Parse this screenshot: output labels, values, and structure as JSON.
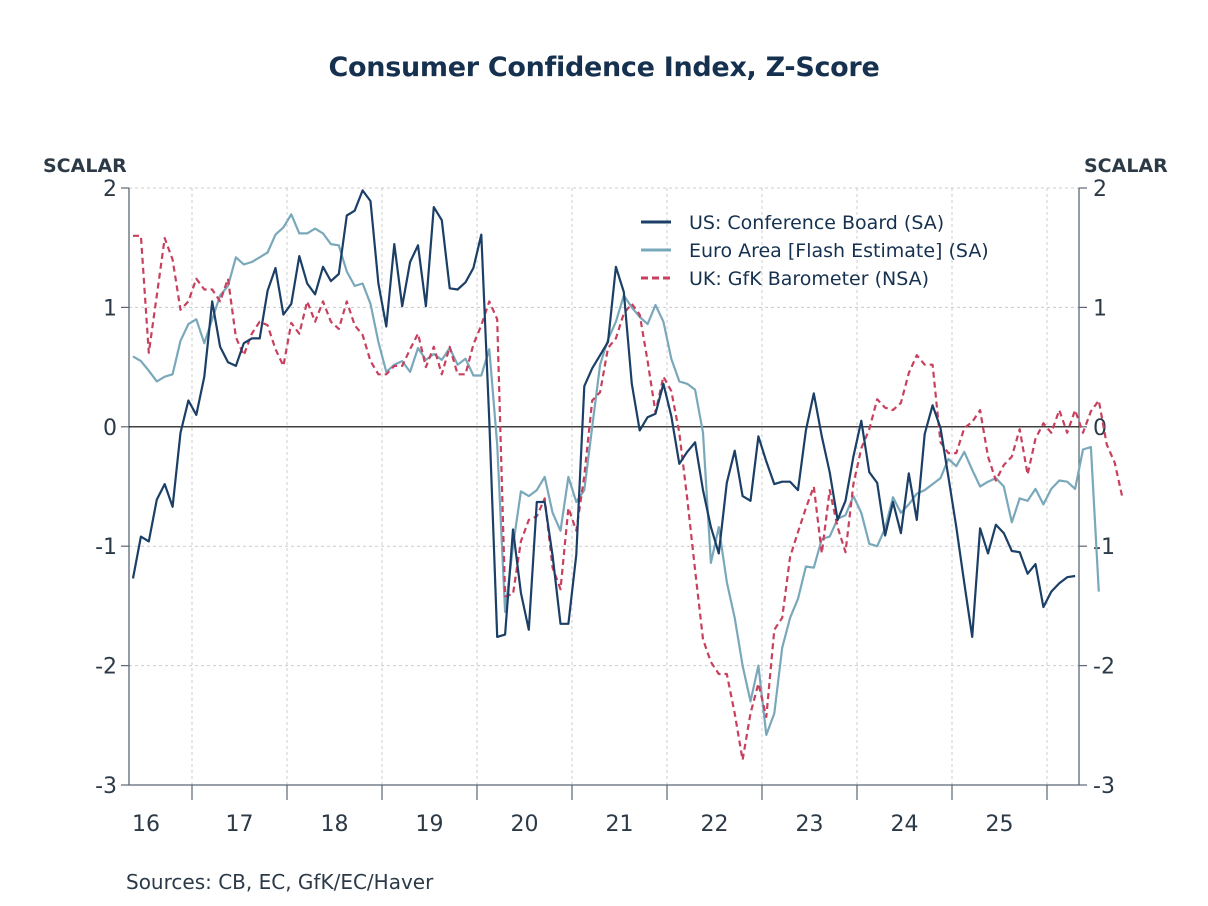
{
  "chart_data": {
    "type": "line",
    "title": "Consumer Confidence Index, Z-Score",
    "ylabel_left": "SCALAR",
    "ylabel_right": "SCALAR",
    "xlabel": "",
    "source": "Sources:  CB, EC, GfK/EC/Haver",
    "ylim": [
      -3,
      2
    ],
    "yticks": [
      2,
      1,
      0,
      -1,
      -2,
      -3
    ],
    "ytick_labels": [
      "2",
      "1",
      "0",
      "-1",
      "-2",
      "-3"
    ],
    "x_start": "2016-05",
    "x_frequency": "monthly",
    "x_tick_labels": [
      "16",
      "17",
      "18",
      "19",
      "20",
      "21",
      "22",
      "23",
      "24",
      "25"
    ],
    "grid": true,
    "zero_line": true,
    "legend_position": "top-right",
    "colors": {
      "us": "#1b3f66",
      "euro": "#7aa8bb",
      "uk": "#c8405e",
      "axis": "#5a6673",
      "grid": "#cccccc"
    },
    "series": [
      {
        "name": "US: Conference Board (SA)",
        "key": "us",
        "style": "solid",
        "values": [
          -1.27,
          -0.92,
          -0.96,
          -0.61,
          -0.48,
          -0.67,
          -0.05,
          0.22,
          0.1,
          0.42,
          1.05,
          0.67,
          0.54,
          0.51,
          0.7,
          0.74,
          0.74,
          1.14,
          1.33,
          0.94,
          1.03,
          1.43,
          1.2,
          1.11,
          1.34,
          1.22,
          1.28,
          1.77,
          1.81,
          1.98,
          1.89,
          1.2,
          0.84,
          1.53,
          1.01,
          1.38,
          1.52,
          1.01,
          1.84,
          1.73,
          1.16,
          1.15,
          1.21,
          1.33,
          1.61,
          0.05,
          -1.76,
          -1.74,
          -0.86,
          -1.39,
          -1.7,
          -0.63,
          -0.63,
          -1.08,
          -1.65,
          -1.65,
          -1.07,
          0.34,
          0.49,
          0.6,
          0.71,
          1.34,
          1.13,
          0.36,
          -0.03,
          0.08,
          0.11,
          0.36,
          0.09,
          -0.31,
          -0.21,
          -0.13,
          -0.53,
          -0.84,
          -1.06,
          -0.47,
          -0.2,
          -0.58,
          -0.62,
          -0.08,
          -0.29,
          -0.48,
          -0.46,
          -0.46,
          -0.53,
          -0.03,
          0.28,
          -0.08,
          -0.38,
          -0.78,
          -0.62,
          -0.25,
          0.05,
          -0.38,
          -0.47,
          -0.91,
          -0.63,
          -0.89,
          -0.39,
          -0.78,
          -0.06,
          0.18,
          -0.01,
          -0.42,
          -0.84,
          -1.31,
          -1.76,
          -0.85,
          -1.06,
          -0.82,
          -0.89,
          -1.04,
          -1.05,
          -1.23,
          -1.15,
          -1.51,
          -1.38,
          -1.31,
          -1.26,
          -1.25
        ]
      },
      {
        "name": "Euro Area [Flash Estimate] (SA)",
        "key": "euro",
        "style": "solid",
        "values": [
          0.59,
          0.55,
          0.47,
          0.38,
          0.42,
          0.44,
          0.72,
          0.86,
          0.9,
          0.7,
          0.9,
          1.1,
          1.18,
          1.42,
          1.36,
          1.38,
          1.42,
          1.46,
          1.61,
          1.67,
          1.78,
          1.62,
          1.62,
          1.66,
          1.62,
          1.53,
          1.52,
          1.3,
          1.18,
          1.2,
          1.03,
          0.71,
          0.46,
          0.52,
          0.55,
          0.46,
          0.66,
          0.56,
          0.61,
          0.56,
          0.66,
          0.52,
          0.57,
          0.43,
          0.43,
          0.65,
          -0.15,
          -1.55,
          -1.0,
          -0.54,
          -0.58,
          -0.53,
          -0.42,
          -0.72,
          -0.87,
          -0.42,
          -0.63,
          -0.53,
          0.0,
          0.52,
          0.73,
          0.88,
          1.1,
          1.0,
          0.92,
          0.86,
          1.02,
          0.88,
          0.57,
          0.38,
          0.36,
          0.31,
          -0.05,
          -1.14,
          -0.84,
          -1.3,
          -1.6,
          -2.0,
          -2.3,
          -2.0,
          -2.58,
          -2.4,
          -1.85,
          -1.6,
          -1.44,
          -1.17,
          -1.18,
          -0.94,
          -0.92,
          -0.77,
          -0.74,
          -0.58,
          -0.72,
          -0.98,
          -1.0,
          -0.85,
          -0.59,
          -0.72,
          -0.65,
          -0.56,
          -0.53,
          -0.48,
          -0.43,
          -0.27,
          -0.33,
          -0.21,
          -0.36,
          -0.5,
          -0.46,
          -0.43,
          -0.5,
          -0.8,
          -0.6,
          -0.62,
          -0.52,
          -0.65,
          -0.52,
          -0.45,
          -0.46,
          -0.52,
          -0.19,
          -0.17,
          -1.38
        ]
      },
      {
        "name": "UK: GfK Barometer (NSA)",
        "key": "uk",
        "style": "dashed",
        "values": [
          1.6,
          1.6,
          0.62,
          1.1,
          1.58,
          1.4,
          0.98,
          1.05,
          1.24,
          1.15,
          1.15,
          1.05,
          1.24,
          0.75,
          0.6,
          0.78,
          0.88,
          0.85,
          0.65,
          0.51,
          0.87,
          0.78,
          1.05,
          0.88,
          1.05,
          0.88,
          0.82,
          1.05,
          0.85,
          0.77,
          0.55,
          0.44,
          0.44,
          0.51,
          0.51,
          0.65,
          0.78,
          0.5,
          0.67,
          0.44,
          0.67,
          0.44,
          0.44,
          0.69,
          0.85,
          1.05,
          0.9,
          -1.42,
          -1.4,
          -0.96,
          -0.78,
          -0.75,
          -0.6,
          -1.18,
          -1.36,
          -0.68,
          -0.87,
          -0.41,
          0.22,
          0.29,
          0.66,
          0.74,
          0.95,
          1.03,
          0.94,
          0.55,
          0.12,
          0.42,
          0.3,
          -0.05,
          -0.6,
          -1.2,
          -1.78,
          -1.97,
          -2.07,
          -2.07,
          -2.4,
          -2.79,
          -2.4,
          -2.15,
          -2.43,
          -1.7,
          -1.6,
          -1.09,
          -0.88,
          -0.68,
          -0.5,
          -1.06,
          -0.53,
          -0.84,
          -1.05,
          -0.48,
          -0.18,
          -0.02,
          0.23,
          0.16,
          0.14,
          0.2,
          0.45,
          0.6,
          0.52,
          0.52,
          -0.13,
          -0.22,
          -0.22,
          -0.01,
          0.04,
          0.14,
          -0.25,
          -0.45,
          -0.32,
          -0.25,
          -0.02,
          -0.4,
          -0.1,
          0.03,
          -0.05,
          0.14,
          -0.05,
          0.14,
          -0.05,
          0.13,
          0.22,
          -0.15,
          -0.3,
          -0.6
        ]
      }
    ]
  }
}
